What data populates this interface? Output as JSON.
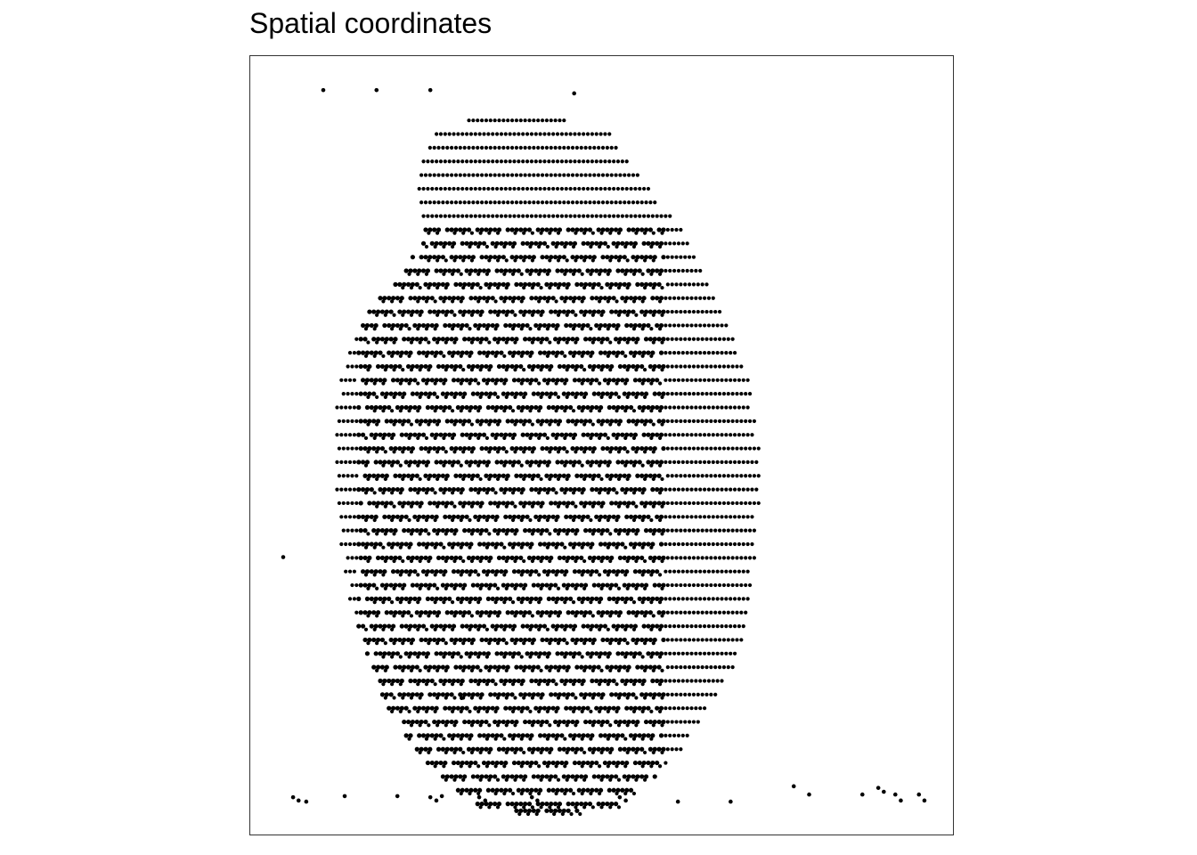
{
  "chart_data": {
    "type": "scatter",
    "title": "Spatial coordinates",
    "xlabel": "",
    "ylabel": "",
    "axes_visible": false,
    "ticks_visible": false,
    "grid": false,
    "legend": "none",
    "point_color": "#000000",
    "frame_color": "#333333",
    "x_domain": [
      0,
      128
    ],
    "y_domain": [
      0,
      142
    ],
    "pattern": "hexagonal spot grid (10x Visium-like), dense uniform tissue region with interleaved ring motifs; plus scattered outlier spots",
    "tissue_region": {
      "row_range": [
        7,
        108
      ],
      "row_step": 2,
      "row_spacing": 1.3125,
      "column_spacing": 1.575,
      "row_extents": [
        [
          7,
          45,
          67
        ],
        [
          9,
          38,
          78
        ],
        [
          11,
          36,
          79
        ],
        [
          13,
          35,
          82
        ],
        [
          15,
          34,
          84
        ],
        [
          17,
          34,
          87
        ],
        [
          19,
          34,
          88
        ],
        [
          21,
          35,
          92
        ],
        [
          23,
          35,
          94
        ],
        [
          25,
          35,
          96
        ],
        [
          27,
          32,
          97
        ],
        [
          29,
          30,
          99
        ],
        [
          31,
          27,
          100
        ],
        [
          33,
          25,
          102
        ],
        [
          35,
          22,
          103
        ],
        [
          37,
          21,
          105
        ],
        [
          39,
          19,
          106
        ],
        [
          41,
          18,
          107
        ],
        [
          43,
          17,
          108
        ],
        [
          45,
          16,
          110
        ],
        [
          47,
          16,
          110
        ],
        [
          49,
          15,
          110
        ],
        [
          51,
          15,
          111
        ],
        [
          53,
          15,
          111
        ],
        [
          55,
          15,
          112
        ],
        [
          57,
          15,
          112
        ],
        [
          59,
          15,
          112
        ],
        [
          61,
          15,
          112
        ],
        [
          63,
          15,
          112
        ],
        [
          65,
          16,
          111
        ],
        [
          67,
          16,
          111
        ],
        [
          69,
          16,
          111
        ],
        [
          71,
          17,
          111
        ],
        [
          73,
          17,
          110
        ],
        [
          75,
          18,
          110
        ],
        [
          77,
          18,
          110
        ],
        [
          79,
          19,
          109
        ],
        [
          81,
          20,
          109
        ],
        [
          83,
          21,
          108
        ],
        [
          85,
          22,
          107
        ],
        [
          87,
          23,
          106
        ],
        [
          89,
          24,
          104
        ],
        [
          91,
          25,
          102
        ],
        [
          93,
          27,
          100
        ],
        [
          95,
          29,
          98
        ],
        [
          97,
          31,
          96
        ],
        [
          99,
          33,
          94
        ],
        [
          101,
          36,
          91
        ],
        [
          103,
          39,
          88
        ],
        [
          105,
          43,
          84
        ],
        [
          107,
          47,
          79
        ],
        [
          108,
          55,
          70
        ]
      ],
      "dense_core_row_range": [
        23,
        108
      ],
      "dense_core_col_range": [
        20,
        90
      ]
    },
    "outlier_points": [
      [
        13.3,
        135.8
      ],
      [
        23.0,
        135.8
      ],
      [
        32.8,
        135.8
      ],
      [
        6.0,
        50.6
      ],
      [
        38.5,
        24.9
      ],
      [
        7.8,
        6.8
      ],
      [
        8.8,
        6.2
      ],
      [
        10.2,
        6.0
      ],
      [
        17.2,
        7.0
      ],
      [
        26.8,
        7.0
      ],
      [
        32.8,
        6.8
      ],
      [
        33.9,
        6.2
      ],
      [
        34.9,
        7.0
      ],
      [
        41.7,
        6.8
      ],
      [
        42.8,
        6.2
      ],
      [
        51.3,
        6.8
      ],
      [
        52.3,
        6.2
      ],
      [
        67.3,
        6.8
      ],
      [
        68.4,
        6.2
      ],
      [
        77.9,
        6.0
      ],
      [
        87.5,
        6.0
      ],
      [
        99.0,
        8.8
      ],
      [
        101.8,
        7.3
      ],
      [
        111.5,
        7.3
      ],
      [
        114.4,
        8.5
      ],
      [
        115.4,
        7.8
      ],
      [
        117.5,
        7.3
      ],
      [
        118.5,
        6.2
      ],
      [
        121.8,
        7.3
      ],
      [
        122.8,
        6.2
      ]
    ],
    "central_point": [
      59.0,
      135.2
    ]
  }
}
